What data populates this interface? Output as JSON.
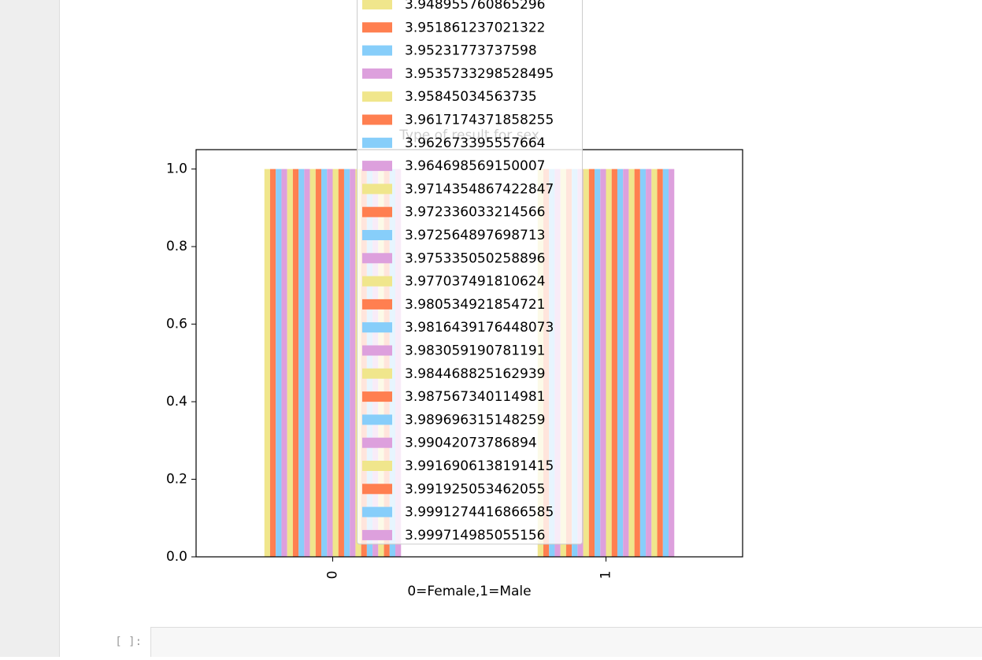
{
  "chart_data": {
    "type": "bar",
    "title": "Type of result for sex",
    "x_label": "0=Female,1=Male",
    "categories": [
      "0",
      "1"
    ],
    "series": [
      {
        "name": "3.948955760865296",
        "color": "#f0e68c",
        "values": [
          1,
          1
        ]
      },
      {
        "name": "3.951861237021322",
        "color": "#ff7f50",
        "values": [
          1,
          1
        ]
      },
      {
        "name": "3.95231773737598",
        "color": "#87cefa",
        "values": [
          1,
          1
        ]
      },
      {
        "name": "3.9535733298528495",
        "color": "#dda0dd",
        "values": [
          1,
          1
        ]
      },
      {
        "name": "3.95845034563735",
        "color": "#f0e68c",
        "values": [
          1,
          1
        ]
      },
      {
        "name": "3.9617174371858255",
        "color": "#ff7f50",
        "values": [
          1,
          1
        ]
      },
      {
        "name": "3.962673395557664",
        "color": "#87cefa",
        "values": [
          1,
          1
        ]
      },
      {
        "name": "3.964698569150007",
        "color": "#dda0dd",
        "values": [
          1,
          1
        ]
      },
      {
        "name": "3.9714354867422847",
        "color": "#f0e68c",
        "values": [
          1,
          1
        ]
      },
      {
        "name": "3.972336033214566",
        "color": "#ff7f50",
        "values": [
          1,
          1
        ]
      },
      {
        "name": "3.972564897698713",
        "color": "#87cefa",
        "values": [
          1,
          1
        ]
      },
      {
        "name": "3.975335050258896",
        "color": "#dda0dd",
        "values": [
          1,
          1
        ]
      },
      {
        "name": "3.977037491810624",
        "color": "#f0e68c",
        "values": [
          1,
          1
        ]
      },
      {
        "name": "3.980534921854721",
        "color": "#ff7f50",
        "values": [
          1,
          1
        ]
      },
      {
        "name": "3.9816439176448073",
        "color": "#87cefa",
        "values": [
          1,
          1
        ]
      },
      {
        "name": "3.983059190781191",
        "color": "#dda0dd",
        "values": [
          1,
          1
        ]
      },
      {
        "name": "3.984468825162939",
        "color": "#f0e68c",
        "values": [
          1,
          1
        ]
      },
      {
        "name": "3.987567340114981",
        "color": "#ff7f50",
        "values": [
          1,
          1
        ]
      },
      {
        "name": "3.989696315148259",
        "color": "#87cefa",
        "values": [
          1,
          1
        ]
      },
      {
        "name": "3.99042073786894",
        "color": "#dda0dd",
        "values": [
          1,
          1
        ]
      },
      {
        "name": "3.9916906138191415",
        "color": "#f0e68c",
        "values": [
          1,
          1
        ]
      },
      {
        "name": "3.991925053462055",
        "color": "#ff7f50",
        "values": [
          1,
          1
        ]
      },
      {
        "name": "3.9991274416866585",
        "color": "#87cefa",
        "values": [
          1,
          1
        ]
      },
      {
        "name": "3.999714985055156",
        "color": "#dda0dd",
        "values": [
          1,
          1
        ]
      }
    ],
    "ylim": [
      0,
      1.05
    ],
    "yticks": [
      {
        "value": 0,
        "label": "0.0"
      },
      {
        "value": 0.2,
        "label": "0.2"
      },
      {
        "value": 0.4,
        "label": "0.4"
      },
      {
        "value": 0.6,
        "label": "0.6"
      },
      {
        "value": 0.8,
        "label": "0.8"
      },
      {
        "value": 1,
        "label": "1.0"
      }
    ]
  },
  "notebook": {
    "empty_cell_prompt": "[ ]:"
  }
}
